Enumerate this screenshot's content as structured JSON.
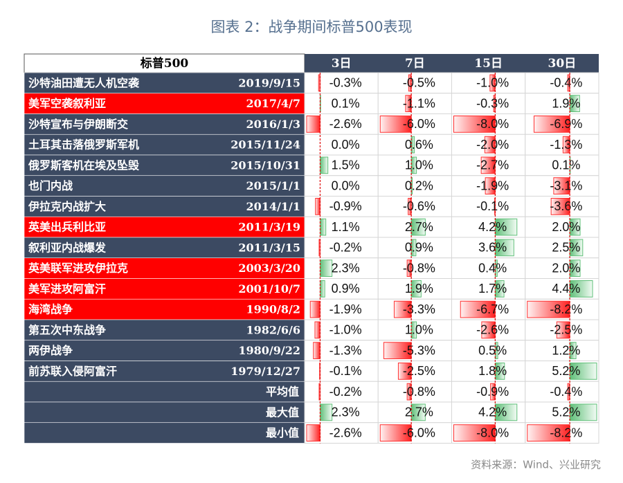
{
  "title": "图表 2：战争期间标普500表现",
  "table": {
    "header": [
      "标普500",
      "3日",
      "7日",
      "15日",
      "30日"
    ],
    "rows": [
      {
        "event": "沙特油田遭无人机空袭",
        "date": "2019/9/15",
        "highlight": false,
        "cells": [
          {
            "value": -0.3,
            "label": "-0.3%"
          },
          {
            "value": -0.5,
            "label": "-0.5%"
          },
          {
            "value": -1.0,
            "label": "-1.0%"
          },
          {
            "value": -0.4,
            "label": "-0.4%"
          }
        ]
      },
      {
        "event": "美军空袭叙利亚",
        "date": "2017/4/7",
        "highlight": true,
        "cells": [
          {
            "value": 0.1,
            "label": "0.1%"
          },
          {
            "value": -1.1,
            "label": "-1.1%"
          },
          {
            "value": -0.3,
            "label": "-0.3%"
          },
          {
            "value": 1.9,
            "label": "1.9%"
          }
        ]
      },
      {
        "event": "沙特宣布与伊朗断交",
        "date": "2016/1/3",
        "highlight": false,
        "cells": [
          {
            "value": -2.6,
            "label": "-2.6%"
          },
          {
            "value": -6.0,
            "label": "-6.0%"
          },
          {
            "value": -8.0,
            "label": "-8.0%"
          },
          {
            "value": -6.9,
            "label": "-6.9%"
          }
        ]
      },
      {
        "event": "土耳其击落俄罗斯军机",
        "date": "2015/11/24",
        "highlight": false,
        "cells": [
          {
            "value": 0,
            "label": "0.0%"
          },
          {
            "value": 0.6,
            "label": "0.6%"
          },
          {
            "value": -2.0,
            "label": "-2.0%"
          },
          {
            "value": -1.3,
            "label": "-1.3%"
          }
        ]
      },
      {
        "event": "俄罗斯客机在埃及坠毁",
        "date": "2015/10/31",
        "highlight": false,
        "cells": [
          {
            "value": 1.5,
            "label": "1.5%"
          },
          {
            "value": 1.0,
            "label": "1.0%"
          },
          {
            "value": -2.7,
            "label": "-2.7%"
          },
          {
            "value": 0.1,
            "label": "0.1%"
          }
        ]
      },
      {
        "event": "也门内战",
        "date": "2015/1/1",
        "highlight": false,
        "cells": [
          {
            "value": 0,
            "label": "0.0%"
          },
          {
            "value": 0.2,
            "label": "0.2%"
          },
          {
            "value": -1.9,
            "label": "-1.9%"
          },
          {
            "value": -3.1,
            "label": "-3.1%"
          }
        ]
      },
      {
        "event": "伊拉克内战扩大",
        "date": "2014/1/1",
        "highlight": false,
        "cells": [
          {
            "value": -0.9,
            "label": "-0.9%"
          },
          {
            "value": -0.6,
            "label": "-0.6%"
          },
          {
            "value": -0.1,
            "label": "-0.1%"
          },
          {
            "value": -3.6,
            "label": "-3.6%"
          }
        ]
      },
      {
        "event": "英美出兵利比亚",
        "date": "2011/3/19",
        "highlight": true,
        "cells": [
          {
            "value": 1.1,
            "label": "1.1%"
          },
          {
            "value": 2.7,
            "label": "2.7%"
          },
          {
            "value": 4.2,
            "label": "4.2%"
          },
          {
            "value": 2.0,
            "label": "2.0%"
          }
        ]
      },
      {
        "event": "叙利亚内战爆发",
        "date": "2011/3/15",
        "highlight": false,
        "cells": [
          {
            "value": -0.2,
            "label": "-0.2%"
          },
          {
            "value": 0.9,
            "label": "0.9%"
          },
          {
            "value": 3.6,
            "label": "3.6%"
          },
          {
            "value": 2.5,
            "label": "2.5%"
          }
        ]
      },
      {
        "event": "英美联军进攻伊拉克",
        "date": "2003/3/20",
        "highlight": true,
        "cells": [
          {
            "value": 2.3,
            "label": "2.3%"
          },
          {
            "value": -0.8,
            "label": "-0.8%"
          },
          {
            "value": 0.4,
            "label": "0.4%"
          },
          {
            "value": 2.0,
            "label": "2.0%"
          }
        ]
      },
      {
        "event": "美军进攻阿富汗",
        "date": "2001/10/7",
        "highlight": true,
        "cells": [
          {
            "value": 0.9,
            "label": "0.9%"
          },
          {
            "value": 1.9,
            "label": "1.9%"
          },
          {
            "value": 1.7,
            "label": "1.7%"
          },
          {
            "value": 4.4,
            "label": "4.4%"
          }
        ]
      },
      {
        "event": "海湾战争",
        "date": "1990/8/2",
        "highlight": true,
        "cells": [
          {
            "value": -1.9,
            "label": "-1.9%"
          },
          {
            "value": -3.3,
            "label": "-3.3%"
          },
          {
            "value": -6.7,
            "label": "-6.7%"
          },
          {
            "value": -8.2,
            "label": "-8.2%"
          }
        ]
      },
      {
        "event": "第五次中东战争",
        "date": "1982/6/6",
        "highlight": false,
        "cells": [
          {
            "value": -1.0,
            "label": "-1.0%"
          },
          {
            "value": 1.0,
            "label": "1.0%"
          },
          {
            "value": -2.6,
            "label": "-2.6%"
          },
          {
            "value": -2.5,
            "label": "-2.5%"
          }
        ]
      },
      {
        "event": "两伊战争",
        "date": "1980/9/22",
        "highlight": false,
        "cells": [
          {
            "value": -1.3,
            "label": "-1.3%"
          },
          {
            "value": -5.3,
            "label": "-5.3%"
          },
          {
            "value": 0.5,
            "label": "0.5%"
          },
          {
            "value": 1.2,
            "label": "1.2%"
          }
        ]
      },
      {
        "event": "前苏联入侵阿富汗",
        "date": "1979/12/27",
        "highlight": false,
        "cells": [
          {
            "value": -0.1,
            "label": "-0.1%"
          },
          {
            "value": -2.5,
            "label": "-2.5%"
          },
          {
            "value": 1.8,
            "label": "1.8%"
          },
          {
            "value": 5.2,
            "label": "5.2%"
          }
        ]
      }
    ],
    "summary": [
      {
        "label": "平均值",
        "cells": [
          {
            "value": -0.2,
            "label": "-0.2%"
          },
          {
            "value": -0.8,
            "label": "-0.8%"
          },
          {
            "value": -0.9,
            "label": "-0.9%"
          },
          {
            "value": -0.4,
            "label": "-0.4%"
          }
        ]
      },
      {
        "label": "最大值",
        "cells": [
          {
            "value": 2.3,
            "label": "2.3%"
          },
          {
            "value": 2.7,
            "label": "2.7%"
          },
          {
            "value": 4.2,
            "label": "4.2%"
          },
          {
            "value": 5.2,
            "label": "5.2%"
          }
        ]
      },
      {
        "label": "最小值",
        "cells": [
          {
            "value": -2.6,
            "label": "-2.6%"
          },
          {
            "value": -6.0,
            "label": "-6.0%"
          },
          {
            "value": -8.0,
            "label": "-8.0%"
          },
          {
            "value": -8.2,
            "label": "-8.2%"
          }
        ]
      }
    ]
  },
  "source": "资料来源：Wind、兴业研究"
}
